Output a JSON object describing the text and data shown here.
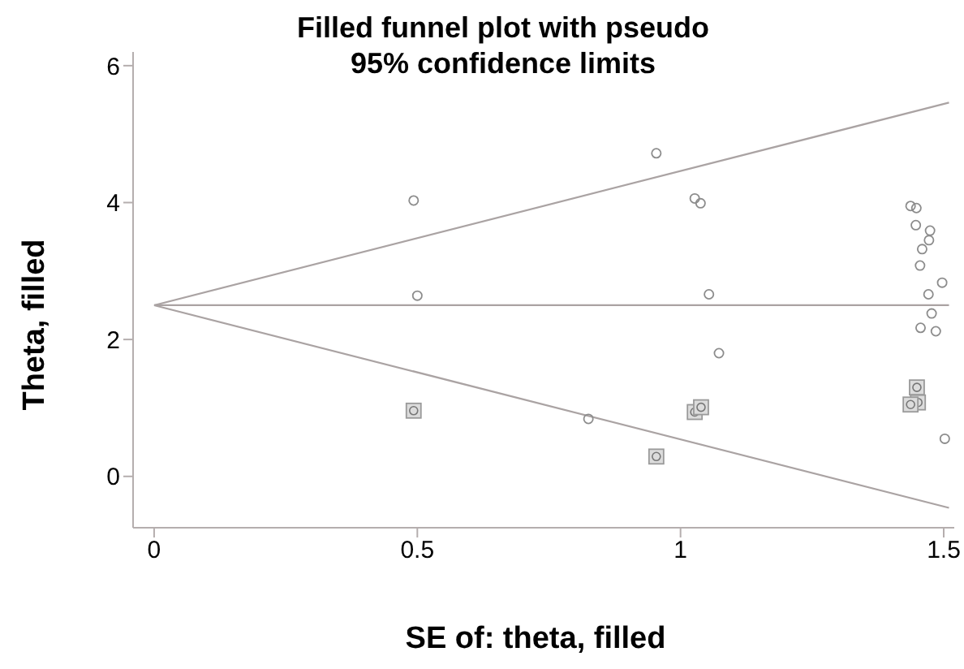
{
  "chart_data": {
    "type": "scatter",
    "title": "Filled funnel plot with pseudo 95% confidence limits",
    "xlabel": "SE of: theta, filled",
    "ylabel": "Theta, filled",
    "xlim": [
      -0.04,
      1.52
    ],
    "ylim": [
      -0.75,
      6.2
    ],
    "xticks": [
      0,
      0.5,
      1,
      1.5
    ],
    "yticks": [
      0,
      2,
      4,
      6
    ],
    "grid": false,
    "legend": false,
    "series": [
      {
        "marker": "circle",
        "color": "#8c8c8c",
        "x": [
          0.493,
          0.5,
          0.825,
          0.954,
          1.027,
          1.038,
          1.054,
          1.073,
          1.437,
          1.448,
          1.447,
          1.474,
          1.472,
          1.459,
          1.455,
          1.497,
          1.471,
          1.477,
          1.456,
          1.485,
          1.502
        ],
        "values": [
          4.03,
          2.64,
          0.84,
          4.72,
          4.06,
          3.99,
          2.66,
          1.8,
          3.95,
          3.92,
          3.67,
          3.59,
          3.45,
          3.32,
          3.08,
          2.83,
          2.66,
          2.38,
          2.17,
          2.12,
          0.55
        ]
      },
      {
        "marker": "square",
        "color": "#9a9a9a",
        "x": [
          0.493,
          0.954,
          1.027,
          1.039,
          1.449,
          1.451,
          1.437
        ],
        "values": [
          0.96,
          0.29,
          0.94,
          1.01,
          1.3,
          1.08,
          1.05
        ]
      },
      {
        "type": "line",
        "marker": "none",
        "color": "#aaa3a3",
        "x": [
          0,
          1.51
        ],
        "values": [
          2.5,
          5.46
        ]
      },
      {
        "type": "line",
        "marker": "none",
        "color": "#aaa3a3",
        "x": [
          0,
          1.51
        ],
        "values": [
          2.5,
          2.5
        ]
      },
      {
        "type": "line",
        "marker": "none",
        "color": "#aaa3a3",
        "x": [
          0,
          1.51
        ],
        "values": [
          2.5,
          -0.46
        ]
      }
    ]
  }
}
